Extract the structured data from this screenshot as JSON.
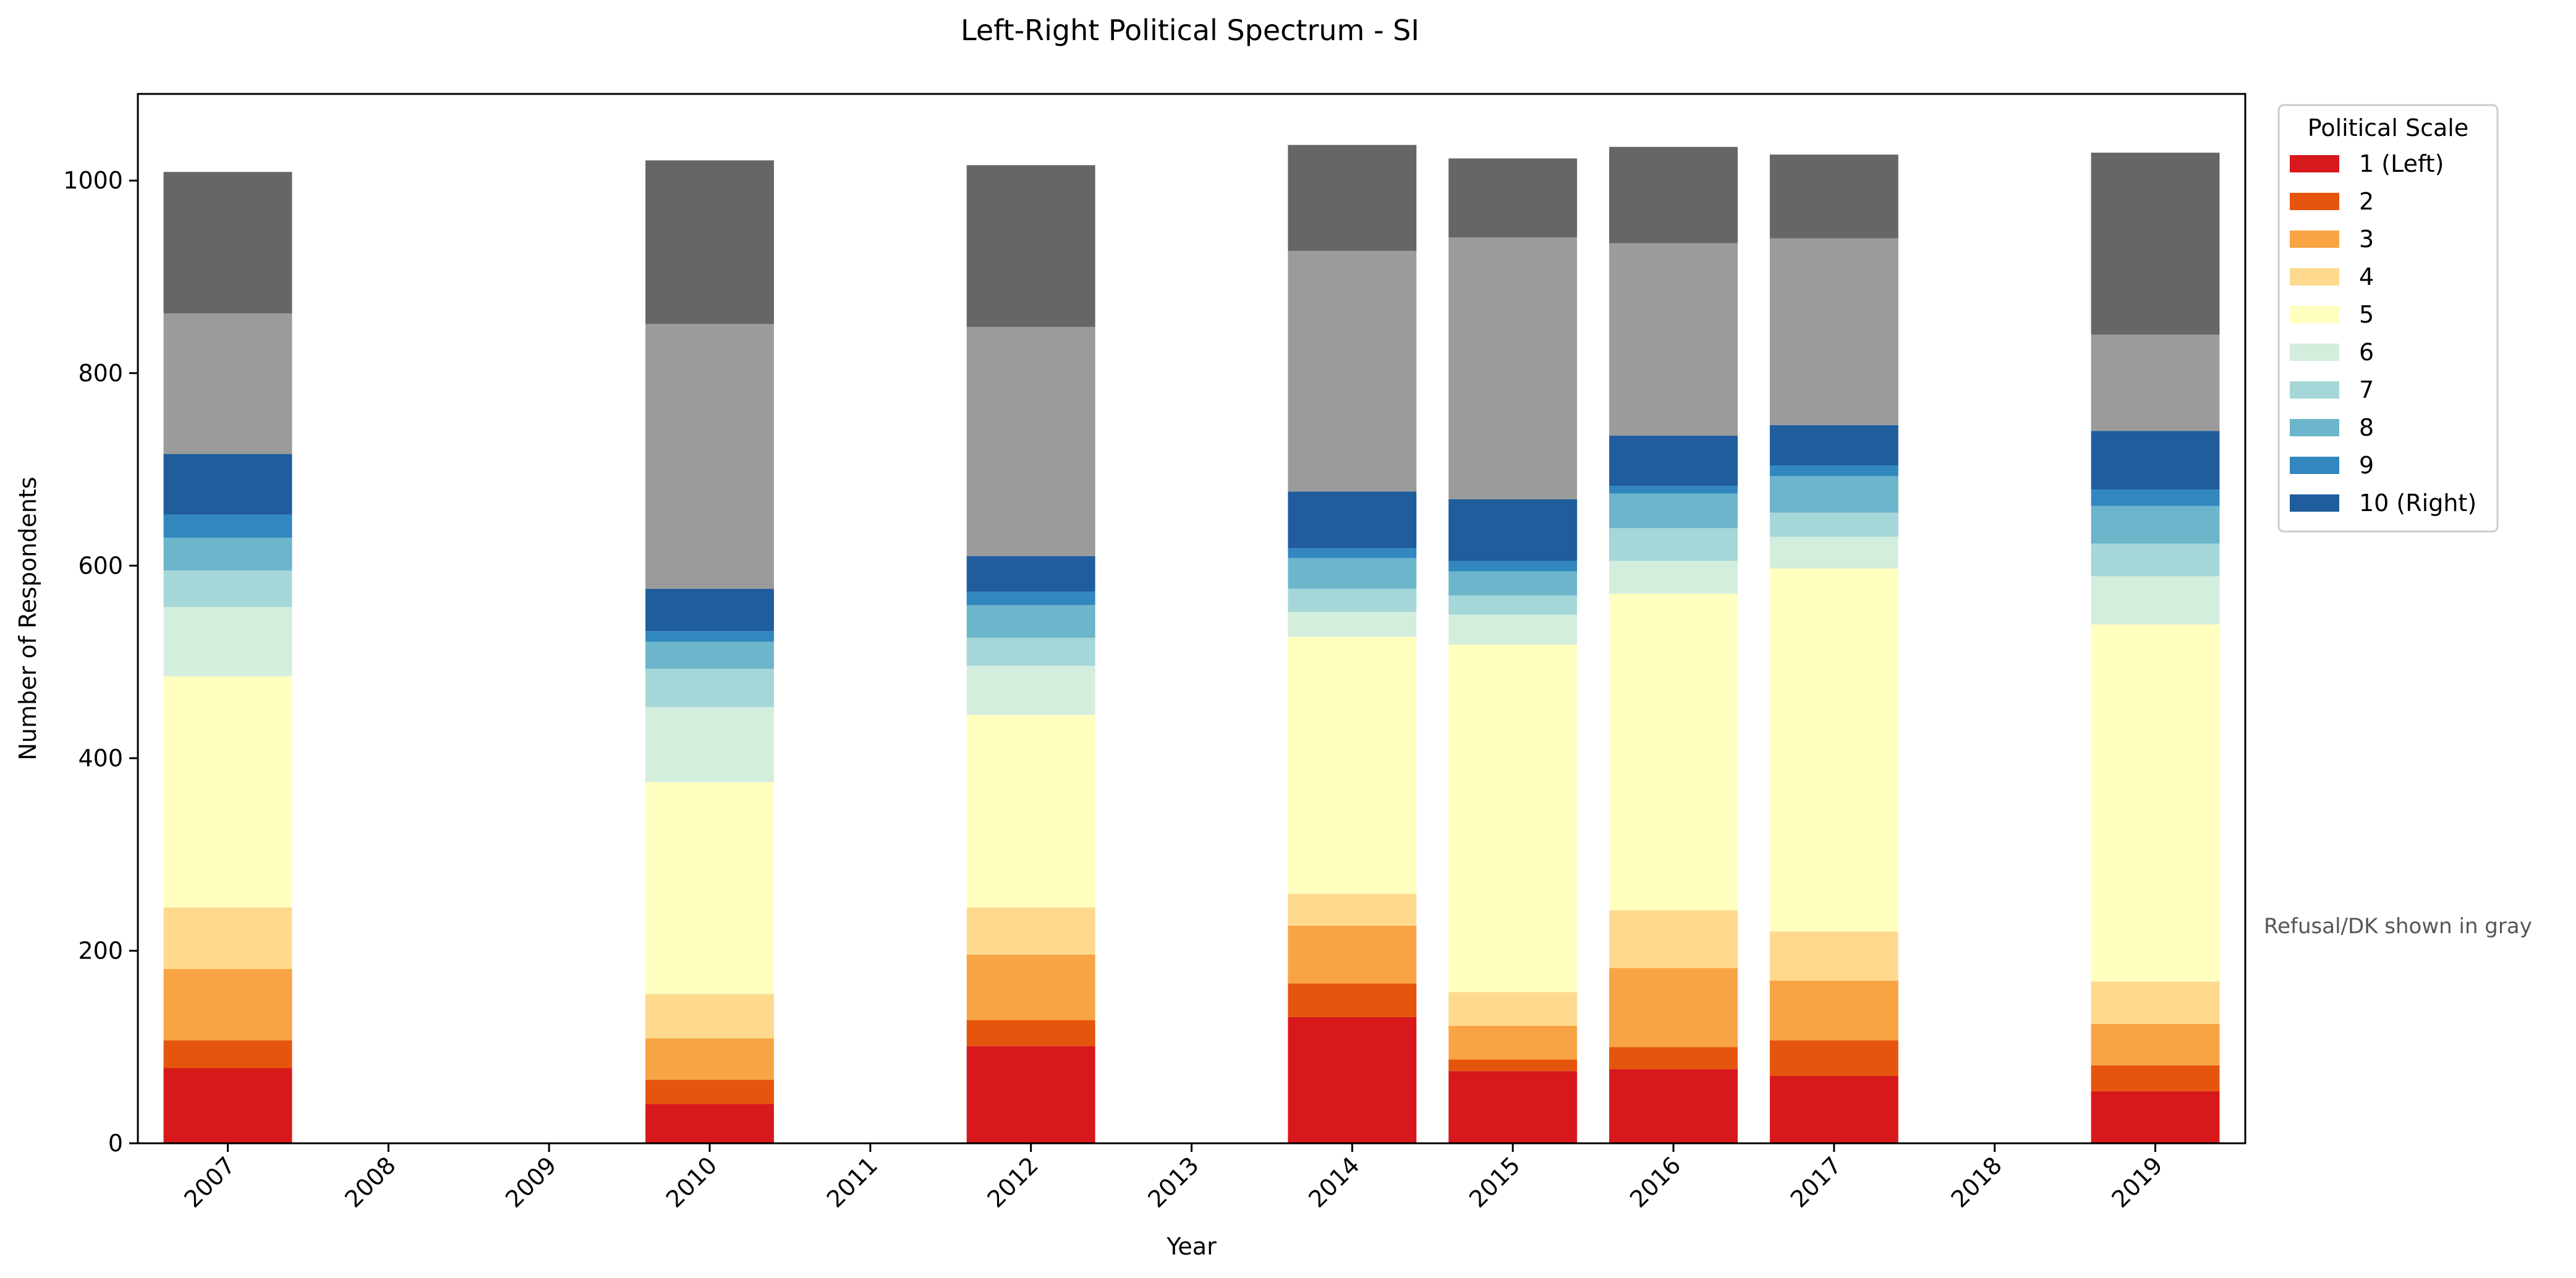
{
  "chart_data": {
    "type": "bar",
    "stacked": true,
    "title": "Left-Right Political Spectrum - SI",
    "xlabel": "Year",
    "ylabel": "Number of Respondents",
    "ylim": [
      0,
      1090
    ],
    "yticks": [
      0,
      200,
      400,
      600,
      800,
      1000
    ],
    "categories": [
      "2007",
      "2008",
      "2009",
      "2010",
      "2011",
      "2012",
      "2013",
      "2014",
      "2015",
      "2016",
      "2017",
      "2018",
      "2019"
    ],
    "legend": {
      "title": "Political Scale",
      "placement": "outside-top-right"
    },
    "note": "Refusal/DK shown in gray",
    "series": [
      {
        "name": "1 (Left)",
        "color": "#d7191c",
        "values": [
          78,
          0,
          0,
          41,
          0,
          101,
          0,
          131,
          75,
          77,
          70,
          0,
          54
        ]
      },
      {
        "name": "2",
        "color": "#e6550d",
        "values": [
          29,
          0,
          0,
          25,
          0,
          27,
          0,
          35,
          12,
          23,
          37,
          0,
          27
        ]
      },
      {
        "name": "3",
        "color": "#f8a444",
        "values": [
          74,
          0,
          0,
          43,
          0,
          68,
          0,
          60,
          35,
          82,
          62,
          0,
          43
        ]
      },
      {
        "name": "4",
        "color": "#fed98e",
        "values": [
          64,
          0,
          0,
          46,
          0,
          49,
          0,
          33,
          35,
          60,
          51,
          0,
          44
        ]
      },
      {
        "name": "5",
        "color": "#ffffc0",
        "values": [
          240,
          0,
          0,
          220,
          0,
          200,
          0,
          267,
          361,
          329,
          377,
          0,
          371
        ]
      },
      {
        "name": "6",
        "color": "#d4eedd",
        "values": [
          72,
          0,
          0,
          78,
          0,
          51,
          0,
          26,
          31,
          34,
          33,
          0,
          50
        ]
      },
      {
        "name": "7",
        "color": "#a6d7d8",
        "values": [
          38,
          0,
          0,
          40,
          0,
          29,
          0,
          24,
          20,
          34,
          25,
          0,
          34
        ]
      },
      {
        "name": "8",
        "color": "#6cb5cb",
        "values": [
          34,
          0,
          0,
          28,
          0,
          34,
          0,
          32,
          25,
          36,
          38,
          0,
          39
        ]
      },
      {
        "name": "9",
        "color": "#3187be",
        "values": [
          24,
          0,
          0,
          11,
          0,
          14,
          0,
          10,
          11,
          8,
          11,
          0,
          17
        ]
      },
      {
        "name": "10 (Right)",
        "color": "#1f5d9c",
        "values": [
          63,
          0,
          0,
          44,
          0,
          37,
          0,
          59,
          64,
          52,
          42,
          0,
          61
        ]
      },
      {
        "name": "",
        "color": "#9b9b9b",
        "values": [
          146,
          0,
          0,
          275,
          0,
          238,
          0,
          250,
          272,
          200,
          194,
          0,
          100
        ]
      },
      {
        "name": "",
        "color": "#666666",
        "values": [
          147,
          0,
          0,
          170,
          0,
          168,
          0,
          110,
          82,
          100,
          87,
          0,
          189
        ]
      }
    ]
  }
}
